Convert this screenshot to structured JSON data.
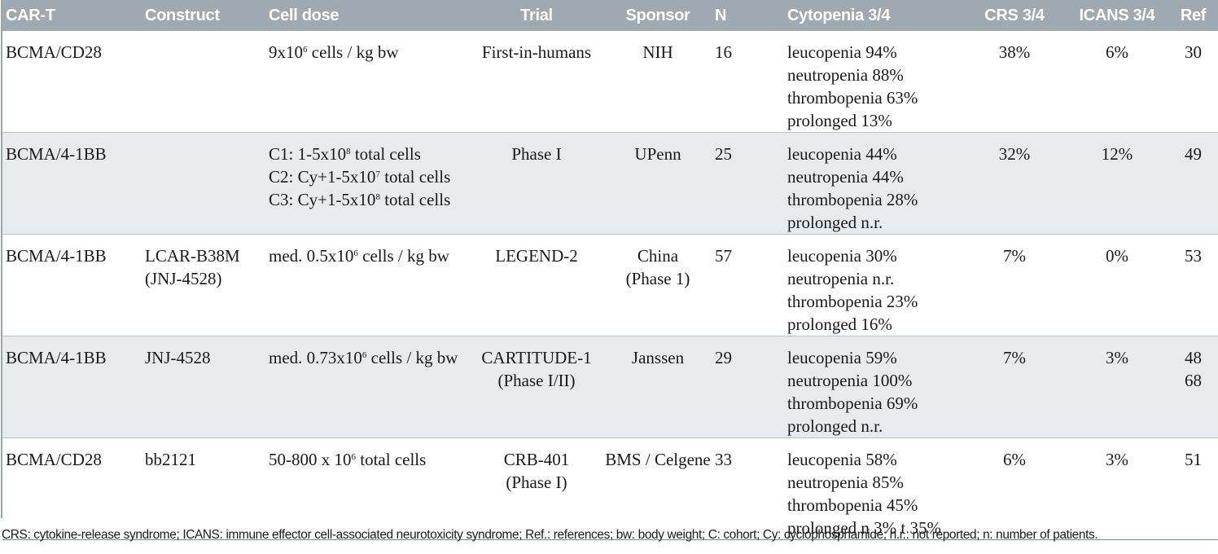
{
  "columns": [
    "CAR-T",
    "Construct",
    "Cell dose",
    "Trial",
    "Sponsor",
    "N",
    "Cytopenia 3/4",
    "CRS 3/4",
    "ICANS 3/4",
    "Ref"
  ],
  "rows": [
    {
      "car_t": "BCMA/CD28",
      "construct": [],
      "cell_dose": [
        {
          "pre": "9x10",
          "sup": "6",
          "post": " cells / kg bw"
        }
      ],
      "trial": [
        "First-in-humans"
      ],
      "sponsor": [
        "NIH"
      ],
      "n": "16",
      "cytopenia": [
        "leucopenia 94%",
        "neutropenia 88%",
        "thrombopenia 63%",
        "prolonged 13%"
      ],
      "crs": "38%",
      "icans": "6%",
      "ref": [
        "30"
      ]
    },
    {
      "car_t": "BCMA/4-1BB",
      "construct": [],
      "cell_dose": [
        {
          "pre": "C1: 1-5x10",
          "sup": "8",
          "post": " total cells"
        },
        {
          "pre": "C2: Cy+1-5x10",
          "sup": "7",
          "post": " total cells"
        },
        {
          "pre": "C3: Cy+1-5x10",
          "sup": "8",
          "post": " total cells"
        }
      ],
      "trial": [
        "Phase I"
      ],
      "sponsor": [
        "UPenn"
      ],
      "n": "25",
      "cytopenia": [
        "leucopenia 44%",
        "neutropenia 44%",
        "thrombopenia 28%",
        "prolonged n.r."
      ],
      "crs": "32%",
      "icans": "12%",
      "ref": [
        "49"
      ]
    },
    {
      "car_t": "BCMA/4-1BB",
      "construct": [
        "LCAR-B38M",
        "(JNJ-4528)"
      ],
      "cell_dose": [
        {
          "pre": "med. 0.5x10",
          "sup": "6",
          "post": " cells / kg bw"
        }
      ],
      "trial": [
        "LEGEND-2"
      ],
      "sponsor": [
        "China",
        "(Phase 1)"
      ],
      "n": "57",
      "cytopenia": [
        "leucopenia 30%",
        "neutropenia n.r.",
        "thrombopenia 23%",
        "prolonged 16%"
      ],
      "crs": "7%",
      "icans": "0%",
      "ref": [
        "53"
      ]
    },
    {
      "car_t": "BCMA/4-1BB",
      "construct": [
        "JNJ-4528"
      ],
      "cell_dose": [
        {
          "pre": "med. 0.73x10",
          "sup": "6",
          "post": " cells / kg bw"
        }
      ],
      "trial": [
        "CARTITUDE-1",
        "(Phase I/II)"
      ],
      "sponsor": [
        "Janssen"
      ],
      "n": "29",
      "cytopenia": [
        "leucopenia 59%",
        "neutropenia 100%",
        "thrombopenia 69%",
        "prolonged n.r."
      ],
      "crs": "7%",
      "icans": "3%",
      "ref": [
        "48",
        "68"
      ]
    },
    {
      "car_t": "BCMA/CD28",
      "construct": [
        "bb2121"
      ],
      "cell_dose": [
        {
          "pre": "50-800 x 10",
          "sup": "6",
          "post": " total cells"
        }
      ],
      "trial": [
        "CRB-401",
        "(Phase I)"
      ],
      "sponsor": [
        "BMS / Celgene"
      ],
      "n": "33",
      "cytopenia": [
        "leucopenia 58%",
        "neutropenia 85%",
        "thrombopenia 45%",
        "prolonged n 3% t 35%"
      ],
      "crs": "6%",
      "icans": "3%",
      "ref": [
        "51"
      ]
    }
  ],
  "footnote": "CRS: cytokine-release syndrome; ICANS: immune effector cell-associated neurotoxicity syndrome; Ref.: references; bw: body weight; C: cohort; Cy: cyclophosphamide; n.r.: not reported; n: number of patients.",
  "colors": {
    "header_bg": "#9ea9b1",
    "header_text": "#ffffff",
    "alt_row_bg": "#e7ebee"
  }
}
